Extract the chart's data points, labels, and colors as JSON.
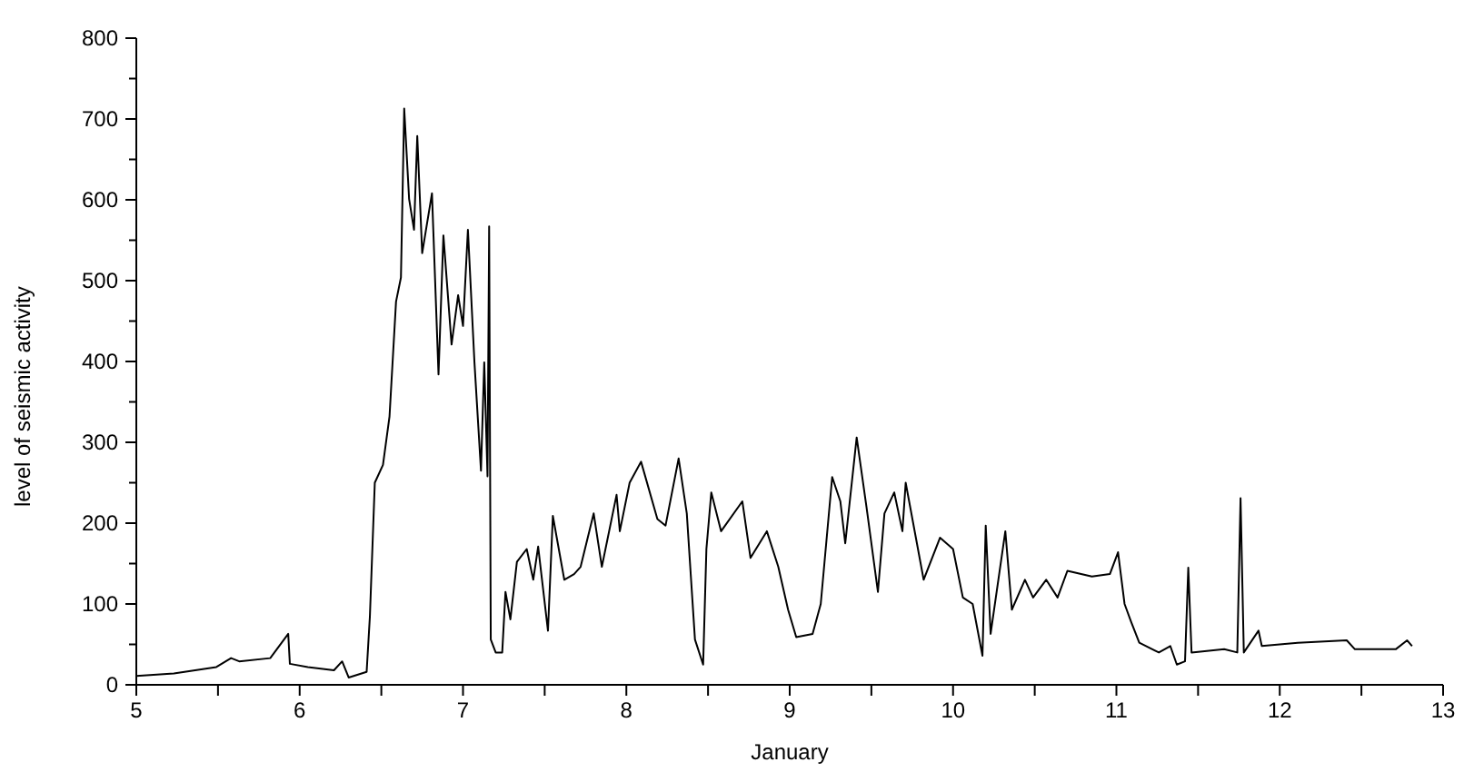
{
  "chart_data": {
    "type": "line",
    "xlabel": "January",
    "ylabel": "level of seismic activity",
    "x": [
      5.0,
      5.23,
      5.49,
      5.58,
      5.63,
      5.82,
      5.93,
      5.94,
      6.05,
      6.21,
      6.26,
      6.3,
      6.41,
      6.43,
      6.46,
      6.51,
      6.55,
      6.59,
      6.62,
      6.64,
      6.67,
      6.7,
      6.72,
      6.75,
      6.81,
      6.85,
      6.88,
      6.93,
      6.97,
      7.0,
      7.03,
      7.07,
      7.11,
      7.13,
      7.15,
      7.16,
      7.17,
      7.2,
      7.24,
      7.26,
      7.29,
      7.33,
      7.39,
      7.43,
      7.46,
      7.52,
      7.55,
      7.62,
      7.68,
      7.72,
      7.8,
      7.85,
      7.94,
      7.96,
      8.02,
      8.09,
      8.19,
      8.24,
      8.32,
      8.37,
      8.42,
      8.47,
      8.49,
      8.52,
      8.58,
      8.71,
      8.76,
      8.86,
      8.93,
      8.99,
      9.04,
      9.14,
      9.19,
      9.26,
      9.31,
      9.34,
      9.41,
      9.47,
      9.54,
      9.58,
      9.64,
      9.69,
      9.71,
      9.82,
      9.92,
      10.0,
      10.06,
      10.12,
      10.18,
      10.2,
      10.23,
      10.32,
      10.36,
      10.44,
      10.49,
      10.57,
      10.64,
      10.7,
      10.85,
      10.96,
      11.01,
      11.05,
      11.09,
      11.14,
      11.26,
      11.33,
      11.37,
      11.42,
      11.44,
      11.46,
      11.66,
      11.74,
      11.76,
      11.78,
      11.87,
      11.89,
      12.11,
      12.41,
      12.46,
      12.71,
      12.78,
      12.81
    ],
    "series": [
      {
        "color": "#000000",
        "values": [
          11,
          14,
          22,
          33,
          29,
          33,
          63,
          26,
          22,
          18,
          29,
          9,
          16,
          85,
          250,
          272,
          332,
          474,
          504,
          713,
          601,
          563,
          679,
          534,
          608,
          384,
          556,
          421,
          482,
          444,
          563,
          399,
          265,
          399,
          258,
          567,
          56,
          40,
          40,
          115,
          81,
          152,
          168,
          130,
          171,
          67,
          209,
          130,
          137,
          146,
          212,
          146,
          235,
          190,
          250,
          276,
          205,
          197,
          280,
          212,
          56,
          25,
          168,
          238,
          190,
          227,
          157,
          190,
          146,
          93,
          59,
          63,
          100,
          257,
          227,
          175,
          306,
          220,
          115,
          212,
          238,
          190,
          250,
          130,
          182,
          168,
          108,
          100,
          36,
          197,
          63,
          190,
          93,
          130,
          108,
          130,
          108,
          141,
          134,
          137,
          164,
          100,
          78,
          52,
          40,
          48,
          25,
          29,
          145,
          40,
          44,
          40,
          231,
          40,
          67,
          48,
          52,
          55,
          44,
          44,
          55,
          48
        ]
      }
    ],
    "xlim": [
      5,
      13
    ],
    "xticks": [
      5,
      {
        "value": 5.5,
        "label": null
      },
      6,
      {
        "value": 6.5,
        "label": null
      },
      7,
      {
        "value": 7.5,
        "label": null
      },
      8,
      {
        "value": 8.5,
        "label": null
      },
      9,
      {
        "value": 9.5,
        "label": null
      },
      10,
      {
        "value": 10.5,
        "label": null
      },
      11,
      {
        "value": 11.5,
        "label": null
      },
      12,
      {
        "value": 12.5,
        "label": null
      },
      13
    ],
    "ylim": [
      0,
      800
    ],
    "yticks": [
      0,
      {
        "value": 50,
        "label": null
      },
      100,
      {
        "value": 150,
        "label": null
      },
      200,
      {
        "value": 250,
        "label": null
      },
      300,
      {
        "value": 350,
        "label": null
      },
      400,
      {
        "value": 450,
        "label": null
      },
      500,
      {
        "value": 550,
        "label": null
      },
      600,
      {
        "value": 650,
        "label": null
      },
      700,
      {
        "value": 750,
        "label": null
      },
      800
    ],
    "grid": false,
    "legend": false,
    "marker": "none",
    "line_style": "solid"
  }
}
